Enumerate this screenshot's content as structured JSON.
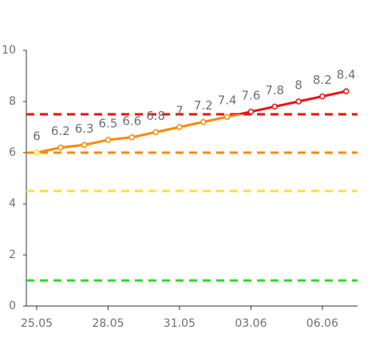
{
  "chart_data": {
    "type": "line",
    "categories": [
      "25.05",
      null,
      null,
      "28.05",
      null,
      null,
      "31.05",
      null,
      null,
      "03.06",
      null,
      null,
      "06.06",
      null
    ],
    "values": [
      6,
      6.2,
      6.3,
      6.5,
      6.6,
      6.8,
      7,
      7.2,
      7.4,
      7.6,
      7.8,
      8,
      8.2,
      8.4
    ],
    "ylim": [
      0,
      10
    ],
    "yticks": [
      0,
      2,
      4,
      6,
      8,
      10
    ],
    "thresholds": [
      {
        "value": 1,
        "color": "#22dd22"
      },
      {
        "value": 4.5,
        "color": "#ffe033"
      },
      {
        "value": 6,
        "color": "#ff8800"
      },
      {
        "value": 7.5,
        "color": "#ee1111"
      }
    ]
  }
}
